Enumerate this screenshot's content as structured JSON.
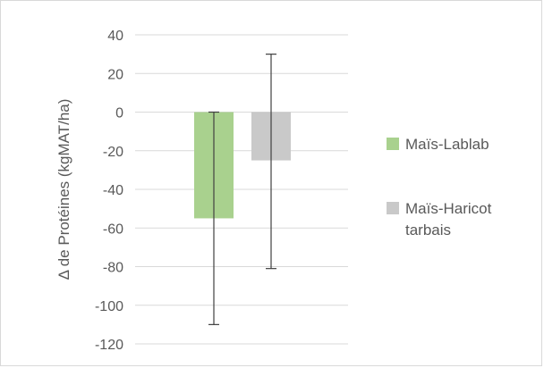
{
  "chart_data": {
    "type": "bar",
    "title": "",
    "xlabel": "",
    "ylabel": "Δ de Protéines (kgMAT/ha)",
    "ylim": [
      -120,
      40
    ],
    "yticks": [
      40,
      20,
      0,
      -20,
      -40,
      -60,
      -80,
      -100,
      -120
    ],
    "grid": true,
    "legend_position": "right",
    "series": [
      {
        "name": "Maïs-Lablab",
        "value": -55,
        "error_low": -110,
        "error_high": 0,
        "color": "#a9d18e"
      },
      {
        "name": "Maïs-Haricot tarbais",
        "name_lines": [
          "Maïs-Haricot",
          "tarbais"
        ],
        "value": -25,
        "error_low": -81,
        "error_high": 30,
        "color": "#c9c9c9"
      }
    ]
  }
}
